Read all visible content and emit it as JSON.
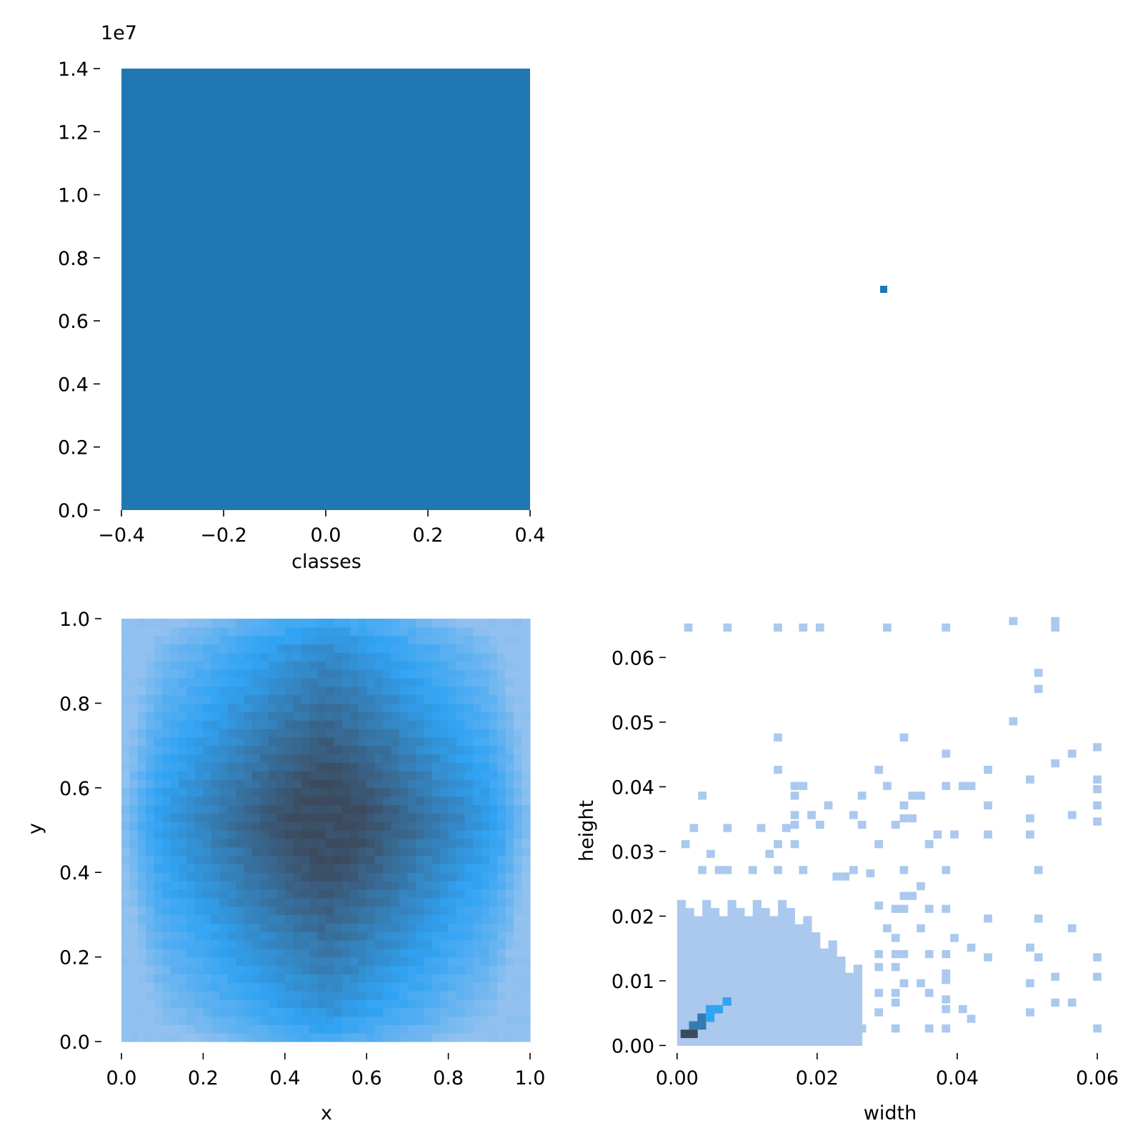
{
  "colors": {
    "bar": "#2077b4",
    "heat_low": "#abc9ee",
    "heat_mid": "#31a3f3",
    "heat_high": "#3c4a5e",
    "tick": "#000000"
  },
  "chart_data": [
    {
      "id": "classes_hist",
      "type": "bar",
      "xlabel": "classes",
      "ylabel": "",
      "offset_label": "1e7",
      "categories": [
        "0"
      ],
      "values": [
        14000000
      ],
      "bar_x_range": [
        -0.4,
        0.4
      ],
      "xlim": [
        -0.4,
        0.4
      ],
      "ylim": [
        0,
        14000000.0
      ],
      "xticks": [
        -0.4,
        -0.2,
        0.0,
        0.2,
        0.4
      ],
      "xtick_labels": [
        "−0.4",
        "−0.2",
        "0.0",
        "0.2",
        "0.4"
      ],
      "yticks": [
        0,
        2000000.0,
        4000000.0,
        6000000.0,
        8000000.0,
        10000000.0,
        12000000.0,
        14000000.0
      ],
      "ytick_labels": [
        "0.0",
        "0.2",
        "0.4",
        "0.6",
        "0.8",
        "1.0",
        "1.2",
        "1.4"
      ],
      "grid": false
    },
    {
      "id": "empty_corner",
      "type": "scatter",
      "points": [
        {
          "x": 0.5,
          "y": 0.5
        }
      ],
      "xlim": [
        0,
        1
      ],
      "ylim": [
        0,
        1
      ],
      "grid": false
    },
    {
      "id": "xy_heatmap",
      "type": "heatmap",
      "xlabel": "x",
      "ylabel": "y",
      "xlim": [
        0,
        1
      ],
      "ylim": [
        0,
        1
      ],
      "bins": 50,
      "peak": {
        "x": 0.5,
        "y": 0.52
      },
      "xticks": [
        0.0,
        0.2,
        0.4,
        0.6,
        0.8,
        1.0
      ],
      "xtick_labels": [
        "0.0",
        "0.2",
        "0.4",
        "0.6",
        "0.8",
        "1.0"
      ],
      "yticks": [
        0.0,
        0.2,
        0.4,
        0.6,
        0.8,
        1.0
      ],
      "ytick_labels": [
        "0.0",
        "0.2",
        "0.4",
        "0.6",
        "0.8",
        "1.0"
      ],
      "grid": false
    },
    {
      "id": "wh_heatmap",
      "type": "heatmap",
      "xlabel": "width",
      "ylabel": "height",
      "xlim": [
        -0.001,
        0.06
      ],
      "ylim": [
        -0.0005,
        0.066
      ],
      "bin_width": 0.0012,
      "bin_height": 0.00125,
      "dense_region": {
        "w_max": 0.026,
        "h_max": 0.023
      },
      "core_cells": [
        {
          "w": 0.0005,
          "h": 0.0012,
          "level": 3
        },
        {
          "w": 0.0017,
          "h": 0.0012,
          "level": 3
        },
        {
          "w": 0.0017,
          "h": 0.0025,
          "level": 2
        },
        {
          "w": 0.0029,
          "h": 0.0025,
          "level": 2
        },
        {
          "w": 0.0029,
          "h": 0.0037,
          "level": 2
        },
        {
          "w": 0.0041,
          "h": 0.005,
          "level": 1
        },
        {
          "w": 0.0053,
          "h": 0.005,
          "level": 1
        },
        {
          "w": 0.0041,
          "h": 0.0037,
          "level": 1
        },
        {
          "w": 0.0065,
          "h": 0.0062,
          "level": 1
        }
      ],
      "sparse_cells": [
        [
          0.001,
          0.064
        ],
        [
          0.0066,
          0.064
        ],
        [
          0.0138,
          0.064
        ],
        [
          0.0174,
          0.064
        ],
        [
          0.0198,
          0.064
        ],
        [
          0.0294,
          0.064
        ],
        [
          0.0378,
          0.064
        ],
        [
          0.0474,
          0.065
        ],
        [
          0.0534,
          0.065
        ],
        [
          0.0534,
          0.064
        ],
        [
          0.051,
          0.057
        ],
        [
          0.051,
          0.0545
        ],
        [
          0.0474,
          0.0495
        ],
        [
          0.0138,
          0.047
        ],
        [
          0.0318,
          0.047
        ],
        [
          0.0594,
          0.0455
        ],
        [
          0.0378,
          0.0445
        ],
        [
          0.0558,
          0.0445
        ],
        [
          0.0534,
          0.043
        ],
        [
          0.0138,
          0.042
        ],
        [
          0.0282,
          0.042
        ],
        [
          0.0438,
          0.042
        ],
        [
          0.0498,
          0.0405
        ],
        [
          0.0594,
          0.0405
        ],
        [
          0.0594,
          0.039
        ],
        [
          0.003,
          0.038
        ],
        [
          0.0162,
          0.0395
        ],
        [
          0.0174,
          0.0395
        ],
        [
          0.0162,
          0.038
        ],
        [
          0.0294,
          0.0395
        ],
        [
          0.0378,
          0.0395
        ],
        [
          0.0402,
          0.0395
        ],
        [
          0.0414,
          0.0395
        ],
        [
          0.0258,
          0.038
        ],
        [
          0.033,
          0.038
        ],
        [
          0.0342,
          0.038
        ],
        [
          0.0318,
          0.0365
        ],
        [
          0.0438,
          0.0365
        ],
        [
          0.0162,
          0.035
        ],
        [
          0.021,
          0.0365
        ],
        [
          0.0186,
          0.035
        ],
        [
          0.0246,
          0.035
        ],
        [
          0.0594,
          0.0365
        ],
        [
          0.0558,
          0.035
        ],
        [
          0.0018,
          0.033
        ],
        [
          0.0066,
          0.033
        ],
        [
          0.0114,
          0.033
        ],
        [
          0.015,
          0.033
        ],
        [
          0.0162,
          0.0335
        ],
        [
          0.0198,
          0.0335
        ],
        [
          0.0258,
          0.0335
        ],
        [
          0.0306,
          0.0335
        ],
        [
          0.0318,
          0.0345
        ],
        [
          0.033,
          0.0345
        ],
        [
          0.0498,
          0.0345
        ],
        [
          0.0594,
          0.034
        ],
        [
          0.0006,
          0.0305
        ],
        [
          0.0042,
          0.029
        ],
        [
          0.0126,
          0.029
        ],
        [
          0.0138,
          0.0305
        ],
        [
          0.0162,
          0.0305
        ],
        [
          0.0282,
          0.0305
        ],
        [
          0.0354,
          0.0305
        ],
        [
          0.0366,
          0.032
        ],
        [
          0.039,
          0.032
        ],
        [
          0.0438,
          0.032
        ],
        [
          0.0498,
          0.032
        ],
        [
          0.003,
          0.0265
        ],
        [
          0.0054,
          0.0265
        ],
        [
          0.0066,
          0.0265
        ],
        [
          0.0102,
          0.0265
        ],
        [
          0.0138,
          0.0265
        ],
        [
          0.0174,
          0.0265
        ],
        [
          0.0222,
          0.0255
        ],
        [
          0.0234,
          0.0255
        ],
        [
          0.0246,
          0.0265
        ],
        [
          0.027,
          0.026
        ],
        [
          0.0318,
          0.0265
        ],
        [
          0.0378,
          0.0265
        ],
        [
          0.051,
          0.0265
        ],
        [
          0.0342,
          0.024
        ],
        [
          0.0318,
          0.0225
        ],
        [
          0.033,
          0.0225
        ],
        [
          0.0282,
          0.021
        ],
        [
          0.0306,
          0.0205
        ],
        [
          0.0318,
          0.0205
        ],
        [
          0.0354,
          0.0205
        ],
        [
          0.0378,
          0.0205
        ],
        [
          0.0438,
          0.019
        ],
        [
          0.051,
          0.019
        ],
        [
          0.0558,
          0.0175
        ],
        [
          0.0294,
          0.0175
        ],
        [
          0.0306,
          0.016
        ],
        [
          0.0342,
          0.0175
        ],
        [
          0.039,
          0.016
        ],
        [
          0.0414,
          0.0145
        ],
        [
          0.0498,
          0.0145
        ],
        [
          0.0306,
          0.0135
        ],
        [
          0.0282,
          0.0135
        ],
        [
          0.0318,
          0.0135
        ],
        [
          0.0354,
          0.0135
        ],
        [
          0.0378,
          0.0135
        ],
        [
          0.0438,
          0.013
        ],
        [
          0.051,
          0.013
        ],
        [
          0.0594,
          0.013
        ],
        [
          0.0282,
          0.0115
        ],
        [
          0.0306,
          0.0115
        ],
        [
          0.0378,
          0.0105
        ],
        [
          0.0318,
          0.009
        ],
        [
          0.0342,
          0.009
        ],
        [
          0.0378,
          0.0095
        ],
        [
          0.0498,
          0.009
        ],
        [
          0.0534,
          0.01
        ],
        [
          0.0594,
          0.01
        ],
        [
          0.0282,
          0.0075
        ],
        [
          0.0306,
          0.0075
        ],
        [
          0.0354,
          0.0075
        ],
        [
          0.0378,
          0.0065
        ],
        [
          0.0402,
          0.005
        ],
        [
          0.0498,
          0.0045
        ],
        [
          0.0534,
          0.006
        ],
        [
          0.0558,
          0.006
        ],
        [
          0.0282,
          0.0045
        ],
        [
          0.0306,
          0.006
        ],
        [
          0.0378,
          0.005
        ],
        [
          0.0414,
          0.0035
        ],
        [
          0.0306,
          0.002
        ],
        [
          0.0354,
          0.002
        ],
        [
          0.0378,
          0.002
        ],
        [
          0.0594,
          0.002
        ],
        [
          0.0234,
          0.0035
        ],
        [
          0.0258,
          0.002
        ]
      ],
      "xticks": [
        0.0,
        0.02,
        0.04,
        0.06
      ],
      "xtick_labels": [
        "0.00",
        "0.02",
        "0.04",
        "0.06"
      ],
      "yticks": [
        0.0,
        0.01,
        0.02,
        0.03,
        0.04,
        0.05,
        0.06
      ],
      "ytick_labels": [
        "0.00",
        "0.01",
        "0.02",
        "0.03",
        "0.04",
        "0.05",
        "0.06"
      ],
      "grid": false
    }
  ]
}
